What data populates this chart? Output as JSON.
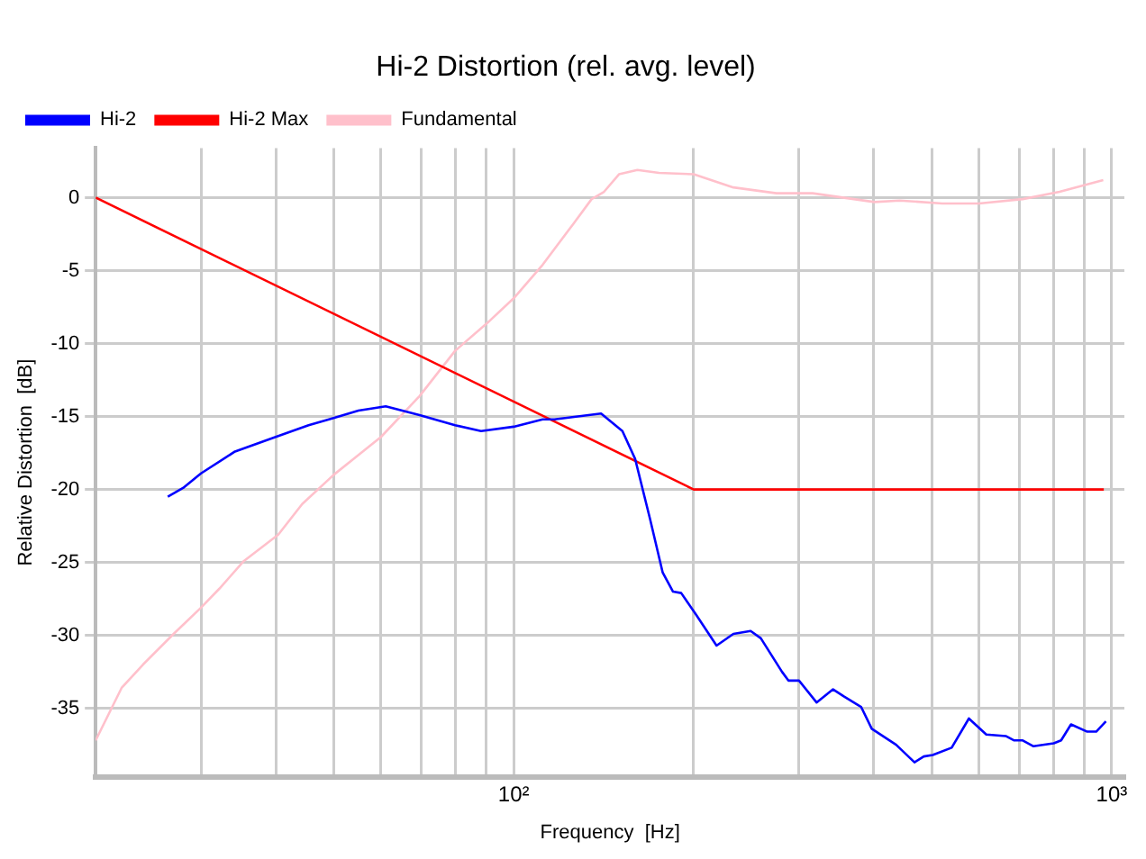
{
  "chart_data": {
    "type": "line",
    "title": "Hi-2 Distortion (rel. avg. level)",
    "xlabel": "Frequency  [Hz]",
    "ylabel": "Relative Distortion  [dB]",
    "log": "x",
    "grid": true,
    "legend": "top left",
    "marker": "none",
    "line_style": "solid",
    "xlim": [
      20,
      1050
    ],
    "xticks": [
      {
        "value": 30,
        "label": null
      },
      {
        "value": 40,
        "label": null
      },
      {
        "value": 50,
        "label": null
      },
      {
        "value": 60,
        "label": null
      },
      {
        "value": 70,
        "label": null
      },
      {
        "value": 80,
        "label": null
      },
      {
        "value": 90,
        "label": null
      },
      {
        "value": 100,
        "label": "10²"
      },
      {
        "value": 200,
        "label": null
      },
      {
        "value": 300,
        "label": null
      },
      {
        "value": 400,
        "label": null
      },
      {
        "value": 500,
        "label": null
      },
      {
        "value": 600,
        "label": null
      },
      {
        "value": 700,
        "label": null
      },
      {
        "value": 800,
        "label": null
      },
      {
        "value": 900,
        "label": null
      },
      {
        "value": 1000,
        "label": "10³"
      }
    ],
    "ylim": [
      -39.7,
      3.4
    ],
    "yticks": [
      -35,
      -30,
      -25,
      -20,
      -15,
      -10,
      -5,
      0
    ],
    "series": [
      {
        "name": "Hi-2",
        "color": "#0000ff",
        "x": [
          26.4,
          28,
          30,
          34.2,
          40,
          45.4,
          50,
          55,
          61.1,
          69.6,
          79.8,
          88.2,
          100,
          111.8,
          117,
          140,
          152,
          159.6,
          169,
          177.5,
          184.7,
          190.6,
          202,
          218.4,
          233,
          249,
          259,
          281,
          288,
          300,
          321,
          342,
          357,
          381,
          397,
          436,
          468,
          485,
          502,
          540,
          577,
          617,
          665,
          687,
          710,
          740,
          800,
          823,
          855,
          910,
          942,
          978
        ],
        "values": [
          -20.5,
          -19.9,
          -18.9,
          -17.4,
          -16.4,
          -15.6,
          -15.1,
          -14.6,
          -14.3,
          -14.9,
          -15.6,
          -16,
          -15.7,
          -15.2,
          -15.2,
          -14.8,
          -16,
          -17.9,
          -22,
          -25.7,
          -27,
          -27.1,
          -28.6,
          -30.7,
          -29.9,
          -29.7,
          -30.2,
          -32.5,
          -33.1,
          -33.1,
          -34.6,
          -33.7,
          -34.2,
          -34.9,
          -36.4,
          -37.5,
          -38.7,
          -38.3,
          -38.2,
          -37.7,
          -35.7,
          -36.8,
          -36.9,
          -37.2,
          -37.2,
          -37.6,
          -37.4,
          -37.2,
          -36.1,
          -36.6,
          -36.6,
          -35.9
        ]
      },
      {
        "name": "Hi-2 Max",
        "color": "#ff0000",
        "x": [
          20,
          200,
          970
        ],
        "values": [
          0,
          -20,
          -20
        ]
      },
      {
        "name": "Fundamental",
        "color": "#ffc0cb",
        "x": [
          20,
          22.1,
          24,
          27,
          30,
          32.2,
          35.4,
          40.4,
          44.3,
          50,
          60,
          69.6,
          79.8,
          90.3,
          100,
          111.8,
          125.8,
          135,
          141.6,
          150,
          161,
          175,
          200,
          233,
          275,
          316,
          401,
          442,
          521,
          600,
          710,
          818,
          968
        ],
        "values": [
          -37.2,
          -33.6,
          -32,
          -29.9,
          -28.1,
          -26.8,
          -24.9,
          -23.1,
          -21,
          -19,
          -16.4,
          -13.6,
          -10.5,
          -8.6,
          -6.9,
          -4.6,
          -1.8,
          -0.1,
          0.4,
          1.6,
          1.9,
          1.7,
          1.6,
          0.7,
          0.3,
          0.3,
          -0.3,
          -0.2,
          -0.4,
          -0.4,
          -0.1,
          0.4,
          1.2
        ]
      }
    ]
  }
}
